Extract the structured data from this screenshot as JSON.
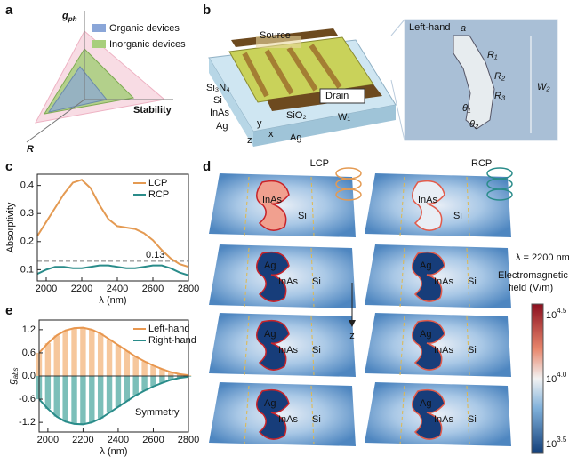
{
  "panel_labels": [
    "a",
    "b",
    "c",
    "d",
    "e"
  ],
  "panel_a": {
    "y_axis": {
      "base": "g",
      "sub": "ph"
    },
    "x_axis": "Stability",
    "z_axis": "R",
    "legend": [
      "Organic devices",
      "Inorganic devices"
    ]
  },
  "panel_b": {
    "labels": [
      "Source",
      "Si₃N₄",
      "Si",
      "InAs",
      "Ag",
      "SiO₂",
      "Drain",
      "W₁",
      "y",
      "x",
      "z",
      "Ag"
    ],
    "inset": {
      "title": "Left-hand",
      "labels": [
        "a",
        "R₁",
        "R₂",
        "R₃",
        "θ₁",
        "θ₂",
        "W₂"
      ]
    }
  },
  "panel_d": {
    "columns": [
      "LCP",
      "RCP"
    ],
    "wavelength": "λ = 2200 nm",
    "depth_axis": "z",
    "maps": [
      [
        [
          "InAs",
          "Si"
        ],
        [
          "InAs",
          "Si"
        ]
      ],
      [
        [
          "Ag",
          "InAs",
          "Si"
        ],
        [
          "Ag",
          "InAs",
          "Si"
        ]
      ],
      [
        [
          "Ag",
          "InAs",
          "Si"
        ],
        [
          "Ag",
          "InAs",
          "Si"
        ]
      ],
      [
        [
          "Ag",
          "InAs",
          "Si"
        ],
        [
          "Ag",
          "InAs",
          "Si"
        ]
      ]
    ],
    "colorbar": {
      "title": [
        "Electromagnetic",
        "field (V/m)"
      ],
      "ticks": [
        {
          "base": "10",
          "exp": "4.5"
        },
        {
          "base": "10",
          "exp": "4.0"
        },
        {
          "base": "10",
          "exp": "3.5"
        }
      ]
    }
  },
  "chart_data": [
    {
      "type": "line",
      "xlabel": "λ (nm)",
      "ylabel": "Absorptivity",
      "legend": "upper right",
      "x": [
        1950,
        2000,
        2050,
        2100,
        2150,
        2200,
        2250,
        2300,
        2350,
        2400,
        2450,
        2500,
        2550,
        2600,
        2650,
        2700,
        2750,
        2800
      ],
      "series": [
        {
          "name": "LCP",
          "color": "#e49a52",
          "values": [
            0.22,
            0.27,
            0.32,
            0.37,
            0.41,
            0.42,
            0.39,
            0.33,
            0.28,
            0.255,
            0.25,
            0.245,
            0.23,
            0.205,
            0.17,
            0.14,
            0.12,
            0.11
          ]
        },
        {
          "name": "RCP",
          "color": "#2a8c8a",
          "values": [
            0.085,
            0.1,
            0.11,
            0.11,
            0.105,
            0.105,
            0.11,
            0.115,
            0.115,
            0.11,
            0.105,
            0.105,
            0.11,
            0.115,
            0.115,
            0.105,
            0.09,
            0.08
          ]
        }
      ],
      "reference_line": 0.13,
      "xlim": [
        1950,
        2800
      ],
      "xticks": [
        2000,
        2200,
        2400,
        2600,
        2800
      ],
      "ylim": [
        0.06,
        0.44
      ],
      "yticks": [
        0.1,
        0.2,
        0.3,
        0.4
      ]
    },
    {
      "type": "striped-area",
      "xlabel": "λ (nm)",
      "ylabel": {
        "base": "g",
        "sub": "abs"
      },
      "legend": "upper right",
      "annotation": "Symmetry",
      "x": [
        1950,
        2000,
        2050,
        2100,
        2150,
        2200,
        2250,
        2300,
        2350,
        2400,
        2450,
        2500,
        2550,
        2600,
        2650,
        2700,
        2750,
        2800
      ],
      "series": [
        {
          "name": "Left-hand",
          "color": "#e8974f",
          "fill": "#f6c79c",
          "values": [
            0.6,
            0.85,
            1.05,
            1.18,
            1.24,
            1.25,
            1.2,
            1.1,
            0.95,
            0.8,
            0.65,
            0.5,
            0.38,
            0.27,
            0.18,
            0.1,
            0.05,
            0.02
          ]
        },
        {
          "name": "Right-hand",
          "color": "#2a8c8a",
          "fill": "#7cbfb9",
          "values": [
            -0.6,
            -0.85,
            -1.05,
            -1.18,
            -1.24,
            -1.25,
            -1.2,
            -1.1,
            -0.95,
            -0.8,
            -0.65,
            -0.5,
            -0.38,
            -0.27,
            -0.18,
            -0.1,
            -0.05,
            -0.02
          ]
        }
      ],
      "xlim": [
        1950,
        2800
      ],
      "xticks": [
        2000,
        2200,
        2400,
        2600,
        2800
      ],
      "ylim": [
        -1.45,
        1.45
      ],
      "yticks": [
        -1.2,
        -0.6,
        {
          "value": 0,
          "label": "0.0"
        },
        0.6,
        1.2
      ]
    }
  ]
}
